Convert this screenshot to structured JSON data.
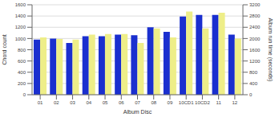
{
  "chart_data": {
    "type": "bar",
    "xlabel": "Album Disc",
    "ylabel": "Chord count",
    "y2label": "Album run time (seconds)",
    "categories": [
      "01",
      "02",
      "03",
      "04",
      "05",
      "06",
      "07",
      "08",
      "09",
      "10CD1",
      "10CD2",
      "11",
      "12"
    ],
    "series": [
      {
        "color": "#1a2fcf",
        "values": [
          980,
          1000,
          920,
          1040,
          1040,
          1070,
          1060,
          1200,
          1120,
          1390,
          1420,
          1420,
          1070
        ]
      },
      {
        "color": "#eeee88",
        "axis": "y2",
        "values": [
          2040,
          1980,
          1960,
          2140,
          2160,
          2160,
          1840,
          2360,
          2040,
          2960,
          2360,
          2920,
          2000
        ]
      }
    ],
    "ylim": [
      0,
      1600
    ],
    "yticks": [
      0,
      200,
      400,
      600,
      800,
      1000,
      1200,
      1400,
      1600
    ],
    "y2lim": [
      0,
      3200
    ],
    "y2ticks": [
      0,
      400,
      800,
      1200,
      1600,
      2000,
      2400,
      2800,
      3200
    ],
    "grid": true
  }
}
